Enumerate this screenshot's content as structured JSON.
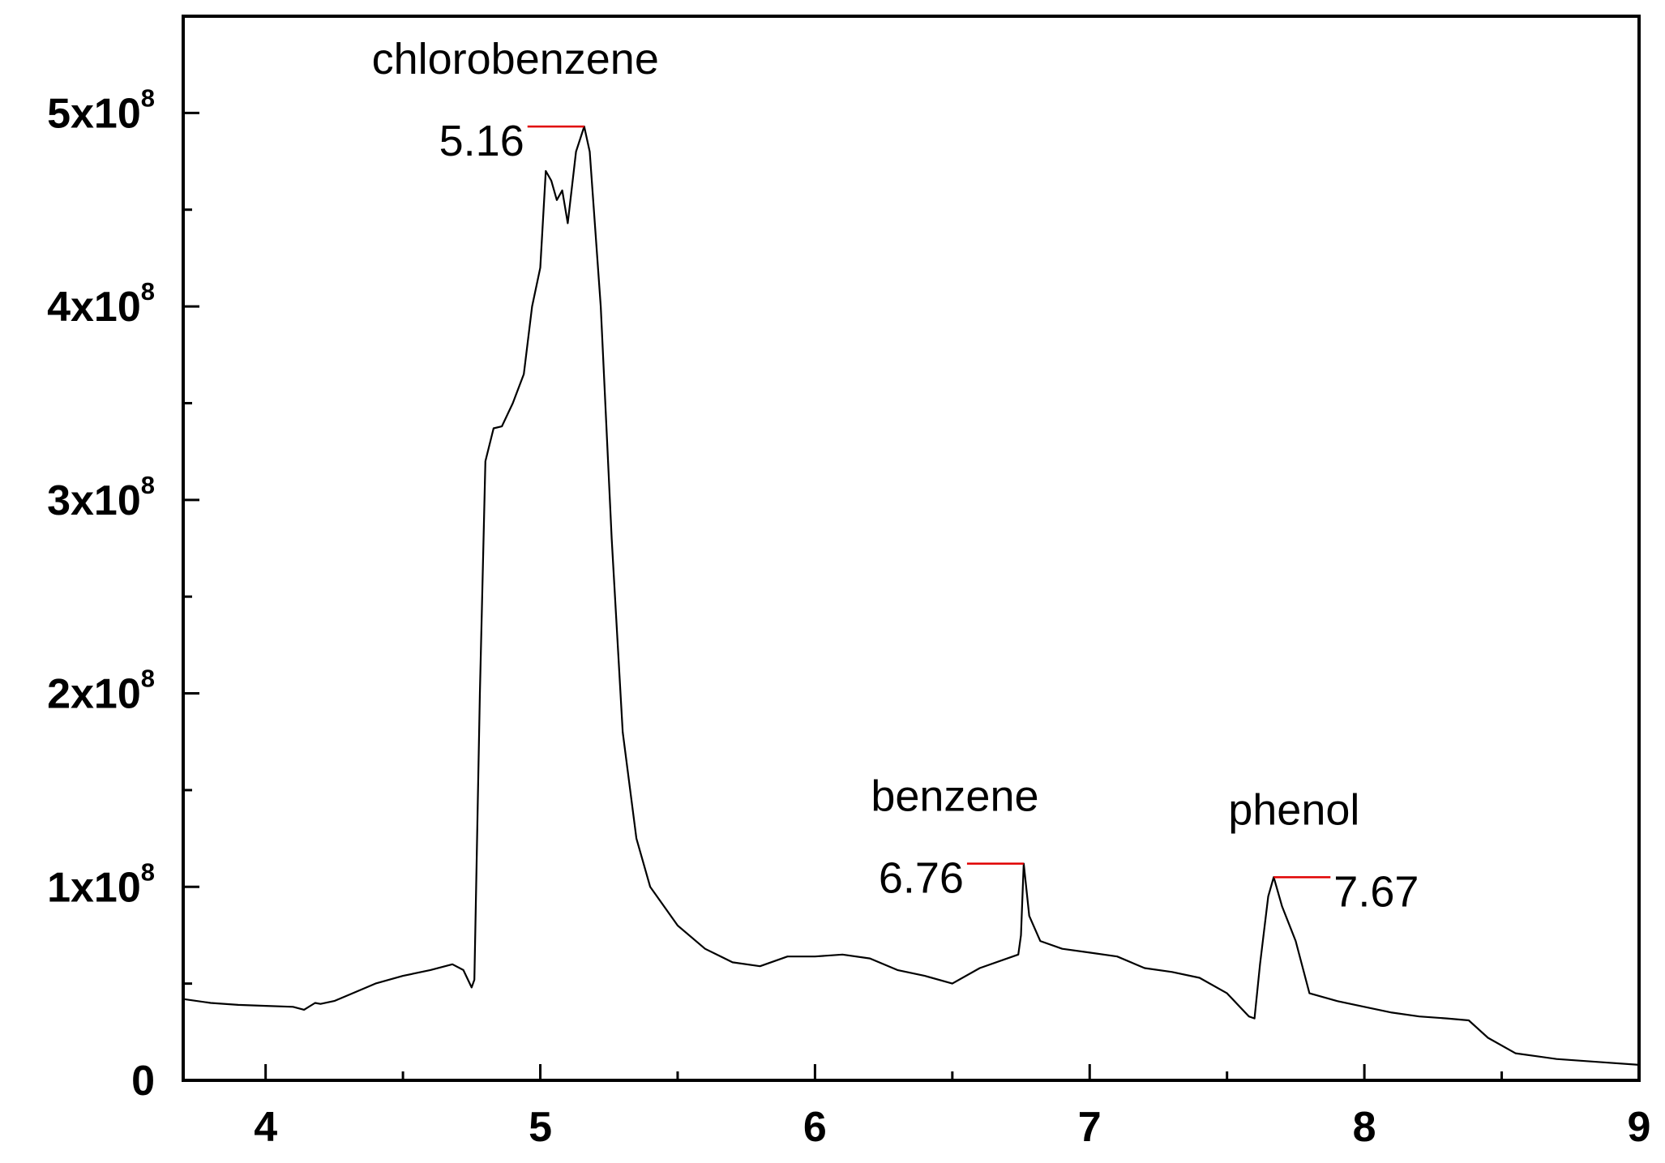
{
  "chart_data": {
    "type": "line",
    "title": "",
    "xlabel": "",
    "ylabel": "",
    "xlim": [
      3.7,
      9.0
    ],
    "ylim": [
      0,
      550000000
    ],
    "grid": false,
    "legend": "none",
    "x_ticks": [
      {
        "value": 4,
        "label": "4"
      },
      {
        "value": 5,
        "label": "5"
      },
      {
        "value": 6,
        "label": "6"
      },
      {
        "value": 7,
        "label": "7"
      },
      {
        "value": 8,
        "label": "8"
      },
      {
        "value": 9,
        "label": "9"
      }
    ],
    "y_ticks": [
      {
        "value": 0,
        "base": "0",
        "exp": ""
      },
      {
        "value": 100000000,
        "base": "1x10",
        "exp": "8"
      },
      {
        "value": 200000000,
        "base": "2x10",
        "exp": "8"
      },
      {
        "value": 300000000,
        "base": "3x10",
        "exp": "8"
      },
      {
        "value": 400000000,
        "base": "4x10",
        "exp": "8"
      },
      {
        "value": 500000000,
        "base": "5x10",
        "exp": "8"
      }
    ],
    "series": [
      {
        "color": "#000000",
        "points": [
          [
            3.7,
            42000000
          ],
          [
            3.8,
            40000000
          ],
          [
            3.9,
            39000000
          ],
          [
            4.0,
            38500000
          ],
          [
            4.1,
            38000000
          ],
          [
            4.14,
            36500000
          ],
          [
            4.18,
            40000000
          ],
          [
            4.2,
            39500000
          ],
          [
            4.25,
            41000000
          ],
          [
            4.3,
            44000000
          ],
          [
            4.4,
            50000000
          ],
          [
            4.5,
            54000000
          ],
          [
            4.6,
            57000000
          ],
          [
            4.68,
            60000000
          ],
          [
            4.72,
            57000000
          ],
          [
            4.75,
            48000000
          ],
          [
            4.76,
            52000000
          ],
          [
            4.78,
            200000000
          ],
          [
            4.8,
            320000000
          ],
          [
            4.83,
            337000000
          ],
          [
            4.86,
            338000000
          ],
          [
            4.9,
            350000000
          ],
          [
            4.94,
            365000000
          ],
          [
            4.97,
            400000000
          ],
          [
            5.0,
            420000000
          ],
          [
            5.02,
            470000000
          ],
          [
            5.04,
            465000000
          ],
          [
            5.06,
            455000000
          ],
          [
            5.08,
            460000000
          ],
          [
            5.1,
            443000000
          ],
          [
            5.13,
            480000000
          ],
          [
            5.16,
            493000000
          ],
          [
            5.18,
            480000000
          ],
          [
            5.22,
            400000000
          ],
          [
            5.26,
            280000000
          ],
          [
            5.3,
            180000000
          ],
          [
            5.35,
            125000000
          ],
          [
            5.4,
            100000000
          ],
          [
            5.5,
            80000000
          ],
          [
            5.6,
            68000000
          ],
          [
            5.7,
            61000000
          ],
          [
            5.8,
            59000000
          ],
          [
            5.9,
            64000000
          ],
          [
            6.0,
            64000000
          ],
          [
            6.1,
            65000000
          ],
          [
            6.2,
            63000000
          ],
          [
            6.3,
            57000000
          ],
          [
            6.4,
            54000000
          ],
          [
            6.5,
            50000000
          ],
          [
            6.6,
            58000000
          ],
          [
            6.7,
            63000000
          ],
          [
            6.74,
            65000000
          ],
          [
            6.75,
            75000000
          ],
          [
            6.76,
            112000000
          ],
          [
            6.78,
            85000000
          ],
          [
            6.82,
            72000000
          ],
          [
            6.9,
            68000000
          ],
          [
            7.0,
            66000000
          ],
          [
            7.1,
            64000000
          ],
          [
            7.2,
            58000000
          ],
          [
            7.3,
            56000000
          ],
          [
            7.4,
            53000000
          ],
          [
            7.5,
            45000000
          ],
          [
            7.58,
            33000000
          ],
          [
            7.6,
            32000000
          ],
          [
            7.62,
            60000000
          ],
          [
            7.65,
            95000000
          ],
          [
            7.67,
            105000000
          ],
          [
            7.7,
            90000000
          ],
          [
            7.75,
            72000000
          ],
          [
            7.8,
            45000000
          ],
          [
            7.9,
            41000000
          ],
          [
            8.0,
            38000000
          ],
          [
            8.1,
            35000000
          ],
          [
            8.2,
            33000000
          ],
          [
            8.3,
            32000000
          ],
          [
            8.38,
            31000000
          ],
          [
            8.45,
            22000000
          ],
          [
            8.55,
            14000000
          ],
          [
            8.7,
            11000000
          ],
          [
            8.85,
            9500000
          ],
          [
            9.0,
            8000000
          ]
        ]
      }
    ],
    "annotations": [
      {
        "name": "chlorobenzene",
        "label": "chlorobenzene",
        "value_label": "5.16",
        "x": 5.16,
        "y": 493000000,
        "side": "left"
      },
      {
        "name": "benzene",
        "label": "benzene",
        "value_label": "6.76",
        "x": 6.76,
        "y": 112000000,
        "side": "left"
      },
      {
        "name": "phenol",
        "label": "phenol",
        "value_label": "7.67",
        "x": 7.67,
        "y": 105000000,
        "side": "right"
      }
    ],
    "colors": {
      "line": "#000000",
      "marker": "#e00000",
      "axis": "#000000"
    }
  }
}
